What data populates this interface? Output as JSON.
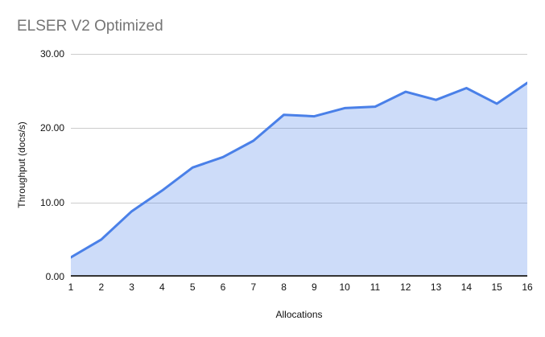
{
  "colors": {
    "line": "#4a80e8",
    "area_fill": "rgba(74, 128, 232, 0.28)",
    "gridline": "#cccccc",
    "axis_line": "#333333",
    "title_text": "#757575",
    "axis_text": "#111111"
  },
  "chart_data": {
    "type": "area",
    "title": "ELSER V2 Optimized",
    "xlabel": "Allocations",
    "ylabel": "Throughput (docs/s)",
    "categories": [
      "1",
      "2",
      "3",
      "4",
      "5",
      "6",
      "7",
      "8",
      "9",
      "10",
      "11",
      "12",
      "13",
      "14",
      "15",
      "16"
    ],
    "series": [
      {
        "name": "Throughput",
        "values": [
          2.6,
          5.0,
          8.8,
          11.6,
          14.7,
          16.1,
          18.3,
          21.8,
          21.6,
          22.7,
          22.9,
          24.9,
          23.8,
          25.4,
          23.3,
          26.1
        ]
      }
    ],
    "ylim": [
      0,
      30
    ],
    "y_ticks": [
      {
        "value": 0,
        "label": "0.00"
      },
      {
        "value": 10,
        "label": "10.00"
      },
      {
        "value": 20,
        "label": "20.00"
      },
      {
        "value": 30,
        "label": "30.00"
      }
    ],
    "grid": true,
    "legend": "none"
  }
}
